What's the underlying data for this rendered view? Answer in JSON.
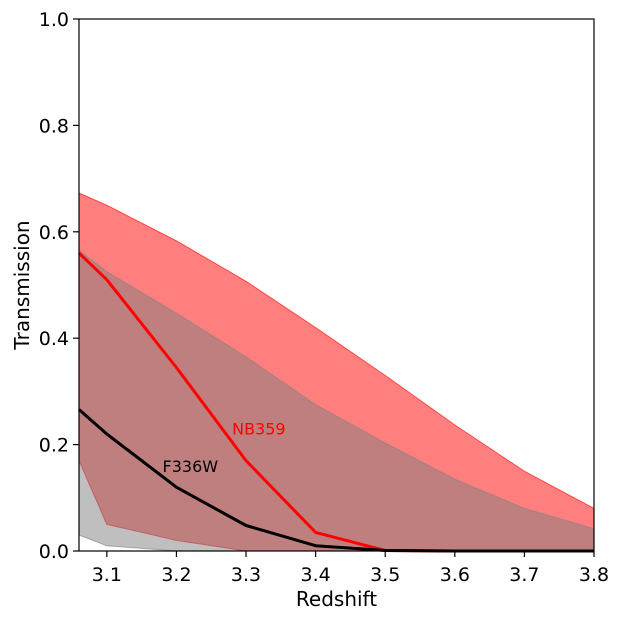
{
  "chart_data": {
    "type": "area",
    "xlabel": "Redshift",
    "ylabel": "Transmission",
    "xlim": [
      3.06,
      3.8
    ],
    "ylim": [
      0.0,
      1.0
    ],
    "xticks": [
      "3.1",
      "3.2",
      "3.3",
      "3.4",
      "3.5",
      "3.6",
      "3.7",
      "3.8"
    ],
    "yticks": [
      "0.0",
      "0.2",
      "0.4",
      "0.6",
      "0.8",
      "1.0"
    ],
    "grid": false,
    "series": [
      {
        "name": "NB359",
        "color": "#ff0000",
        "band_color": "#ff0000",
        "x": [
          3.06,
          3.1,
          3.2,
          3.3,
          3.4,
          3.5,
          3.6,
          3.7,
          3.8
        ],
        "values": [
          0.56,
          0.51,
          0.345,
          0.17,
          0.035,
          0.001,
          0.0,
          0.0,
          0.0
        ],
        "upper": [
          0.673,
          0.65,
          0.583,
          0.507,
          0.42,
          0.33,
          0.237,
          0.15,
          0.08
        ],
        "lower": [
          0.17,
          0.05,
          0.02,
          0.0,
          0.0,
          0.0,
          0.0,
          0.0,
          0.0
        ]
      },
      {
        "name": "F336W",
        "color": "#000000",
        "band_color": "#808080",
        "x": [
          3.06,
          3.1,
          3.2,
          3.3,
          3.4,
          3.5,
          3.6,
          3.7,
          3.8
        ],
        "values": [
          0.266,
          0.22,
          0.12,
          0.048,
          0.01,
          0.001,
          0.0,
          0.0,
          0.0
        ],
        "upper": [
          0.565,
          0.525,
          0.447,
          0.365,
          0.275,
          0.203,
          0.135,
          0.08,
          0.042
        ],
        "lower": [
          0.03,
          0.01,
          0.0,
          0.0,
          0.0,
          0.0,
          0.0,
          0.0,
          0.0
        ]
      }
    ]
  }
}
